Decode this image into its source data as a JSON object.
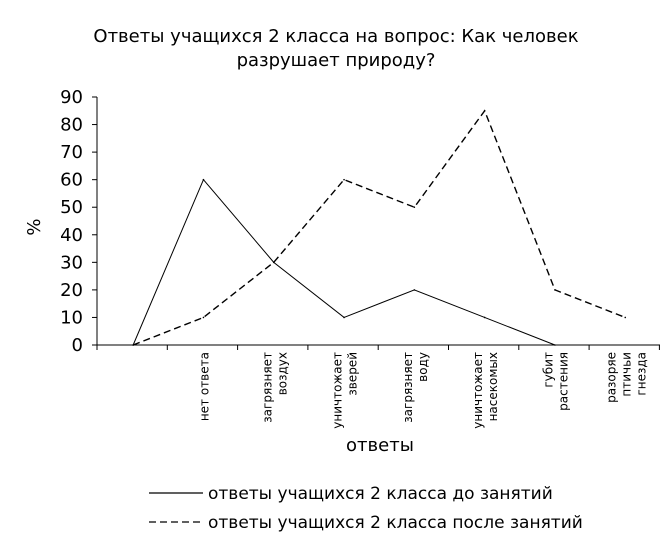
{
  "chart_data": {
    "type": "line",
    "title": [
      "Ответы учащихся 2 класса на вопрос: Как человек",
      "разрушает природу?"
    ],
    "xlabel": "ответы",
    "ylabel": "%",
    "ylim": [
      0,
      90
    ],
    "yticks": [
      0,
      10,
      20,
      30,
      40,
      50,
      60,
      70,
      80,
      90
    ],
    "categories": [
      [
        ""
      ],
      [
        "нет ответа"
      ],
      [
        "загрязняет",
        "воздух"
      ],
      [
        "уничтожает",
        "зверей"
      ],
      [
        "загрязняет",
        "воду"
      ],
      [
        "уничтожает",
        "насекомых"
      ],
      [
        "губит",
        "растения"
      ],
      [
        "разоряе",
        "птичьи",
        "гнезда"
      ]
    ],
    "series": [
      {
        "name": "ответы учащихся 2 класса до занятий",
        "values": [
          0,
          60,
          30,
          10,
          20,
          10,
          0,
          null
        ],
        "dash": "solid",
        "color": "#000000"
      },
      {
        "name": "ответы учащихся 2 класса после занятий",
        "values": [
          0,
          10,
          30,
          60,
          50,
          85,
          20,
          10
        ],
        "dash": "dashed",
        "color": "#000000"
      }
    ],
    "grid": false,
    "legend_position": "bottom"
  }
}
